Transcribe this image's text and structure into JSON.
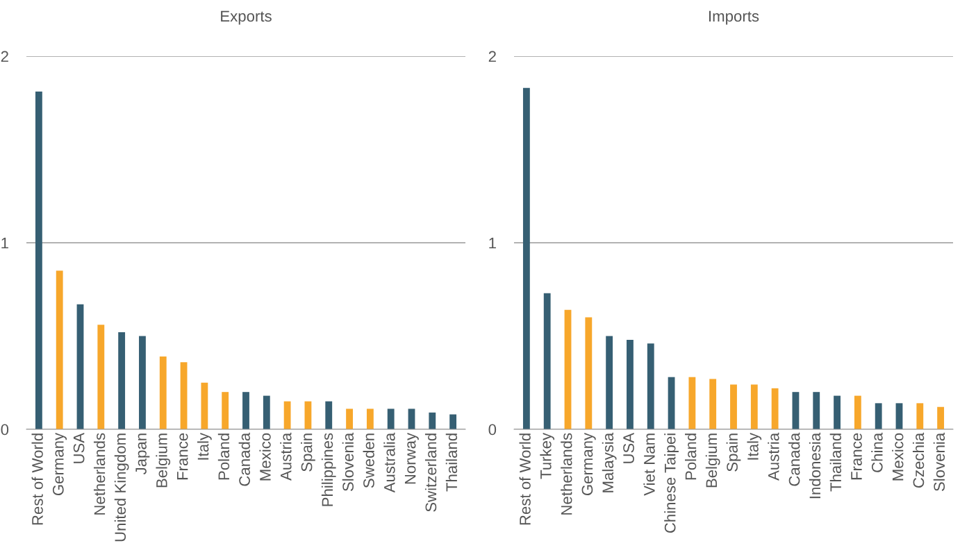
{
  "chart_data": [
    {
      "type": "bar",
      "title": "Exports",
      "categories": [
        "Rest of World",
        "Germany",
        "USA",
        "Netherlands",
        "United Kingdom",
        "Japan",
        "Belgium",
        "France",
        "Italy",
        "Poland",
        "Canada",
        "Mexico",
        "Austria",
        "Spain",
        "Philippines",
        "Slovenia",
        "Sweden",
        "Australia",
        "Norway",
        "Switzerland",
        "Thailand"
      ],
      "values": [
        1.81,
        0.85,
        0.67,
        0.56,
        0.52,
        0.5,
        0.39,
        0.36,
        0.25,
        0.2,
        0.2,
        0.18,
        0.15,
        0.15,
        0.15,
        0.11,
        0.11,
        0.11,
        0.11,
        0.09,
        0.08
      ],
      "colors": [
        "#365f73",
        "#f7a72b",
        "#365f73",
        "#f7a72b",
        "#365f73",
        "#365f73",
        "#f7a72b",
        "#f7a72b",
        "#f7a72b",
        "#f7a72b",
        "#365f73",
        "#365f73",
        "#f7a72b",
        "#f7a72b",
        "#365f73",
        "#f7a72b",
        "#f7a72b",
        "#365f73",
        "#365f73",
        "#365f73",
        "#365f73"
      ],
      "ylim": [
        0,
        2
      ],
      "yticks": [
        0,
        1,
        2
      ],
      "grid": "y",
      "legend": false
    },
    {
      "type": "bar",
      "title": "Imports",
      "categories": [
        "Rest of World",
        "Turkey",
        "Netherlands",
        "Germany",
        "Malaysia",
        "USA",
        "Viet Nam",
        "Chinese Taipei",
        "Poland",
        "Belgium",
        "Spain",
        "Italy",
        "Austria",
        "Canada",
        "Indonesia",
        "Thailand",
        "France",
        "China",
        "Mexico",
        "Czechia",
        "Slovenia"
      ],
      "values": [
        1.83,
        0.73,
        0.64,
        0.6,
        0.5,
        0.48,
        0.46,
        0.28,
        0.28,
        0.27,
        0.24,
        0.24,
        0.22,
        0.2,
        0.2,
        0.18,
        0.18,
        0.14,
        0.14,
        0.14,
        0.12
      ],
      "colors": [
        "#365f73",
        "#365f73",
        "#f7a72b",
        "#f7a72b",
        "#365f73",
        "#365f73",
        "#365f73",
        "#365f73",
        "#f7a72b",
        "#f7a72b",
        "#f7a72b",
        "#f7a72b",
        "#f7a72b",
        "#365f73",
        "#365f73",
        "#365f73",
        "#f7a72b",
        "#365f73",
        "#365f73",
        "#f7a72b",
        "#f7a72b"
      ],
      "ylim": [
        0,
        2
      ],
      "yticks": [
        0,
        1,
        2
      ],
      "grid": "y",
      "legend": false
    }
  ]
}
